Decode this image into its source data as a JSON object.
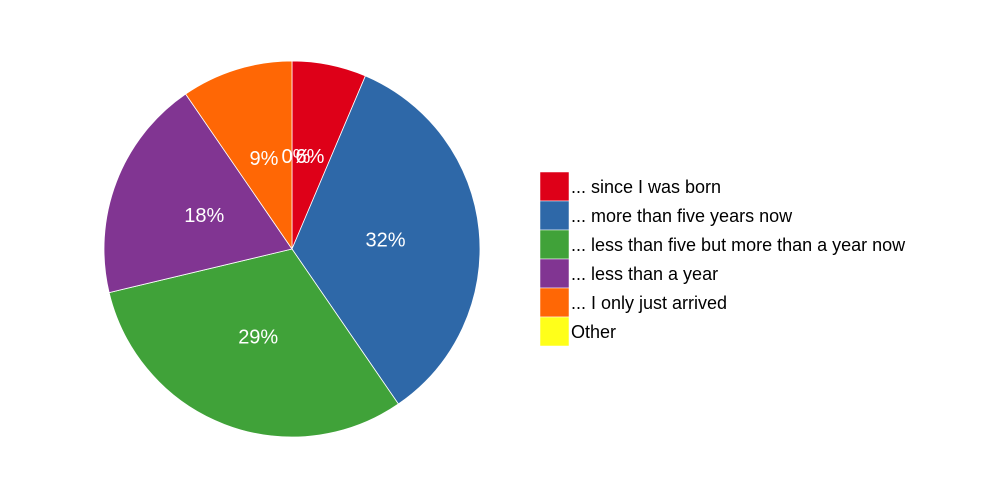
{
  "chart_data": {
    "type": "pie",
    "title": "",
    "slices": [
      {
        "label": "... since I was born",
        "value": 6,
        "display": "6%",
        "color": "#de0018"
      },
      {
        "label": "... more than five years now",
        "value": 32,
        "display": "32%",
        "color": "#2e68a8"
      },
      {
        "label": "... less than five but more than a year now",
        "value": 29,
        "display": "29%",
        "color": "#40a239"
      },
      {
        "label": "... less than a year",
        "value": 18,
        "display": "18%",
        "color": "#813592"
      },
      {
        "label": "... I only just arrived",
        "value": 9,
        "display": "9%",
        "color": "#ff6705"
      },
      {
        "label": "Other",
        "value": 0,
        "display": "0%",
        "color": "#ffff1a"
      }
    ],
    "legend_position": "right"
  }
}
